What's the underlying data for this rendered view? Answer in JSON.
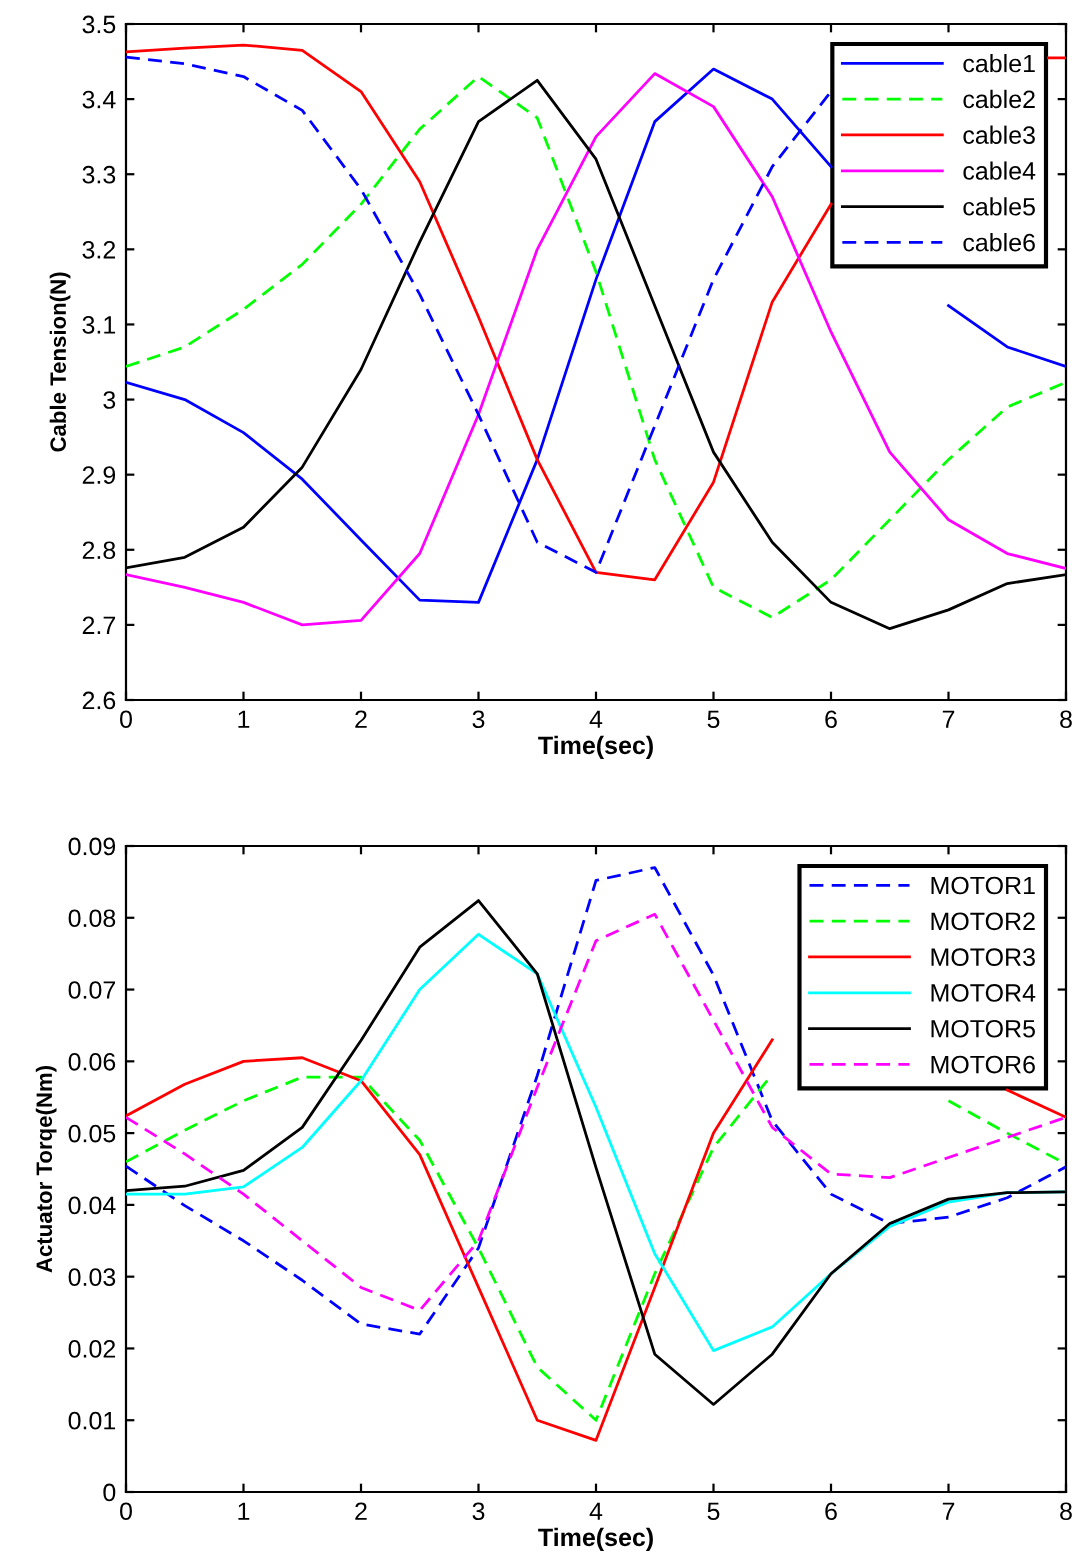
{
  "chart_data": [
    {
      "type": "line",
      "xlabel": "Time(sec)",
      "ylabel": "Cable Tension(N)",
      "x": [
        0,
        0.5,
        1,
        1.5,
        2,
        2.5,
        3,
        3.5,
        4,
        4.5,
        5,
        5.5,
        6,
        6.5,
        7,
        7.5,
        8
      ],
      "xlim": [
        0,
        8
      ],
      "xticks": [
        0,
        1,
        2,
        3,
        4,
        5,
        6,
        7,
        8
      ],
      "ylim": [
        2.6,
        3.5
      ],
      "yticks": [
        2.6,
        2.7,
        2.8,
        2.9,
        3,
        3.1,
        3.2,
        3.3,
        3.4,
        3.5
      ],
      "grid": false,
      "legend": "top right",
      "marker": "none",
      "series": [
        {
          "name": "cable1",
          "color": "#0000ff",
          "line_style": "solid",
          "values": [
            3.023,
            3.0,
            2.956,
            2.894,
            2.813,
            2.733,
            2.73,
            2.92,
            3.16,
            3.37,
            3.44,
            3.4,
            3.31,
            null,
            3.125,
            3.07,
            3.044
          ]
        },
        {
          "name": "cable2",
          "color": "#00ff00",
          "line_style": "dashed",
          "values": [
            3.044,
            3.07,
            3.12,
            3.18,
            3.26,
            3.36,
            3.43,
            3.375,
            3.17,
            2.92,
            2.75,
            2.71,
            2.76,
            2.84,
            2.92,
            2.99,
            3.023
          ]
        },
        {
          "name": "cable3",
          "color": "#ff0000",
          "line_style": "solid",
          "x": [
            0,
            0.5,
            1,
            1.5,
            2,
            2.5,
            3,
            3.5,
            4,
            4.5,
            5,
            5.5,
            6,
            6.5,
            7,
            7.5,
            7.85,
            8
          ],
          "values": [
            3.463,
            3.468,
            3.472,
            3.465,
            3.41,
            3.29,
            3.11,
            2.92,
            2.77,
            2.76,
            2.89,
            3.13,
            3.26,
            null,
            null,
            null,
            3.455,
            3.455
          ]
        },
        {
          "name": "cable4",
          "color": "#ff00ff",
          "line_style": "solid",
          "values": [
            2.767,
            2.75,
            2.73,
            2.7,
            2.706,
            2.795,
            2.98,
            3.2,
            3.35,
            3.434,
            3.39,
            3.27,
            3.09,
            2.93,
            2.84,
            2.795,
            2.775
          ]
        },
        {
          "name": "cable5",
          "color": "#000000",
          "line_style": "solid",
          "values": [
            2.776,
            2.79,
            2.83,
            2.91,
            3.04,
            3.21,
            3.37,
            3.425,
            3.32,
            3.125,
            2.93,
            2.81,
            2.73,
            2.695,
            2.72,
            2.755,
            2.767
          ]
        },
        {
          "name": "cable6",
          "color": "#0000ff",
          "line_style": "dashed",
          "values": [
            3.456,
            3.447,
            3.43,
            3.385,
            3.28,
            3.14,
            2.98,
            2.81,
            2.77,
            2.965,
            3.16,
            3.31,
            3.41,
            null,
            null,
            null,
            null
          ]
        }
      ]
    },
    {
      "type": "line",
      "xlabel": "Time(sec)",
      "ylabel": "Actuator Torqe(Nm)",
      "x": [
        0,
        0.5,
        1,
        1.5,
        2,
        2.5,
        3,
        3.5,
        4,
        4.5,
        5,
        5.5,
        6,
        6.5,
        7,
        7.5,
        8
      ],
      "xlim": [
        0,
        8
      ],
      "xticks": [
        0,
        1,
        2,
        3,
        4,
        5,
        6,
        7,
        8
      ],
      "ylim": [
        0,
        0.09
      ],
      "yticks": [
        0,
        0.01,
        0.02,
        0.03,
        0.04,
        0.05,
        0.06,
        0.07,
        0.08,
        0.09
      ],
      "grid": false,
      "legend": "top right",
      "marker": "none",
      "series": [
        {
          "name": "MOTOR1",
          "color": "#0000ff",
          "line_style": "dashed",
          "values": [
            0.0454,
            0.0399,
            0.035,
            0.0295,
            0.0234,
            0.022,
            0.034,
            0.058,
            0.0852,
            0.087,
            0.072,
            0.0517,
            0.0415,
            0.0374,
            0.0383,
            0.041,
            0.0453
          ]
        },
        {
          "name": "MOTOR2",
          "color": "#00ff00",
          "line_style": "dashed",
          "values": [
            0.046,
            0.0504,
            0.0545,
            0.0578,
            0.0578,
            0.049,
            0.034,
            0.0174,
            0.01,
            0.0304,
            0.048,
            0.0582,
            null,
            null,
            0.0545,
            0.05,
            0.0457
          ]
        },
        {
          "name": "MOTOR3",
          "color": "#ff0000",
          "line_style": "solid",
          "values": [
            0.0524,
            0.0568,
            0.06,
            0.0605,
            0.0573,
            0.047,
            0.0285,
            0.01,
            0.0072,
            0.0285,
            0.05,
            0.063,
            null,
            null,
            null,
            0.056,
            0.0522
          ]
        },
        {
          "name": "MOTOR4",
          "color": "#00ffff",
          "line_style": "solid",
          "values": [
            0.0415,
            0.0415,
            0.0425,
            0.048,
            0.0573,
            0.07,
            0.0777,
            0.0722,
            0.0536,
            0.0332,
            0.0197,
            0.023,
            0.0304,
            0.037,
            0.0404,
            0.0417,
            0.0418
          ]
        },
        {
          "name": "MOTOR5",
          "color": "#000000",
          "line_style": "solid",
          "values": [
            0.042,
            0.0426,
            0.0448,
            0.0508,
            0.0629,
            0.0759,
            0.0824,
            0.0722,
            0.0452,
            0.0192,
            0.0122,
            0.0192,
            0.0304,
            0.0374,
            0.0408,
            0.0417,
            0.0418
          ]
        },
        {
          "name": "MOTOR6",
          "color": "#ff00ff",
          "line_style": "dashed",
          "values": [
            0.0522,
            0.0471,
            0.0415,
            0.035,
            0.0285,
            0.0253,
            0.035,
            0.0564,
            0.0768,
            0.0805,
            0.0657,
            0.0508,
            0.0443,
            0.0438,
            0.0466,
            0.0494,
            0.0522
          ]
        }
      ]
    }
  ]
}
